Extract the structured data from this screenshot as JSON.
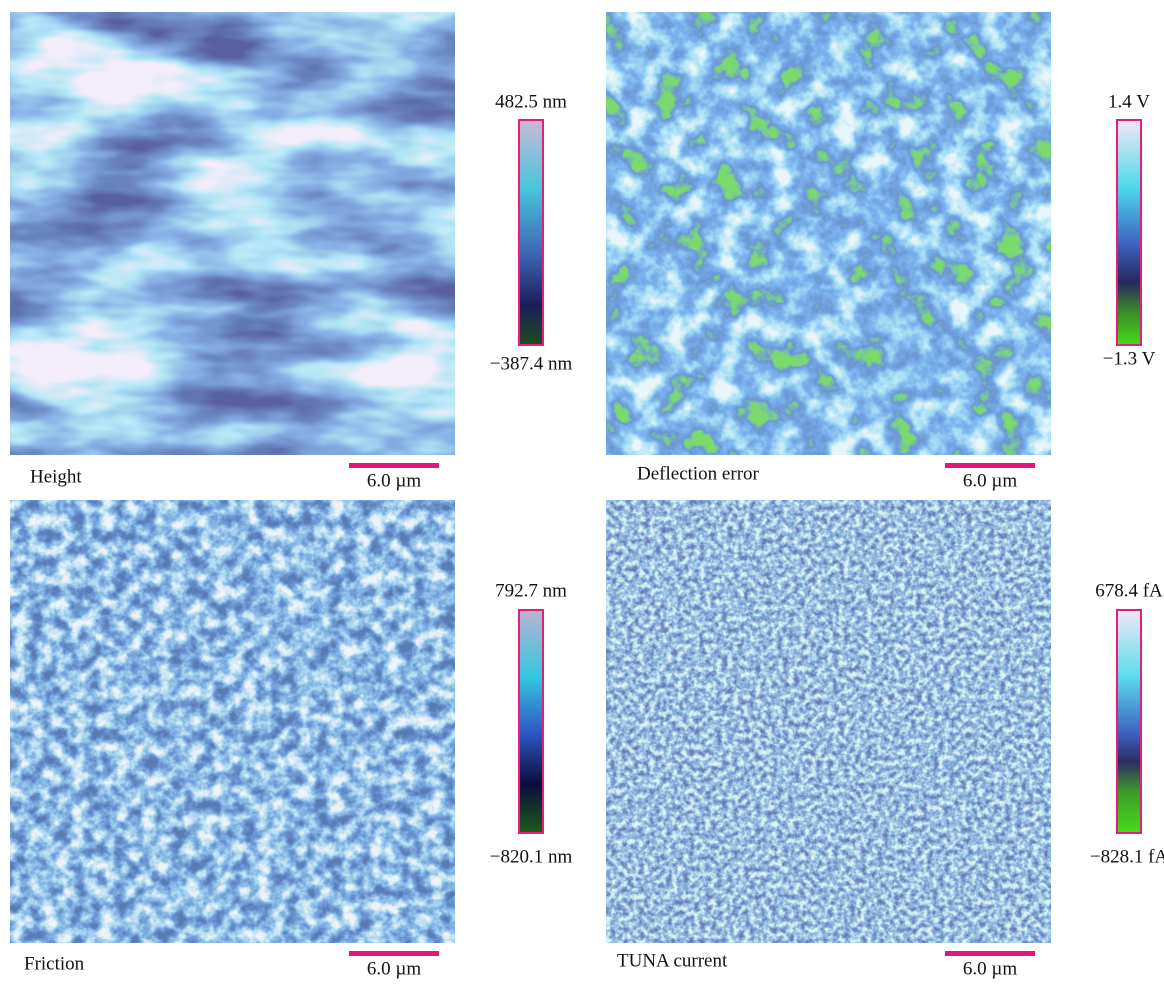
{
  "panels": [
    {
      "label": "Height",
      "max": "482.5 nm",
      "min": "−387.4 nm",
      "scale": "6.0 µm"
    },
    {
      "label": "Deflection error",
      "max": "1.4 V",
      "min": "−1.3 V",
      "scale": "6.0 µm"
    },
    {
      "label": "Friction",
      "max": "792.7 nm",
      "min": "−820.1 nm",
      "scale": "6.0 µm"
    },
    {
      "label": "TUNA current",
      "max": "678.4 fA",
      "min": "−828.1 fA",
      "scale": "6.0 µm"
    }
  ]
}
